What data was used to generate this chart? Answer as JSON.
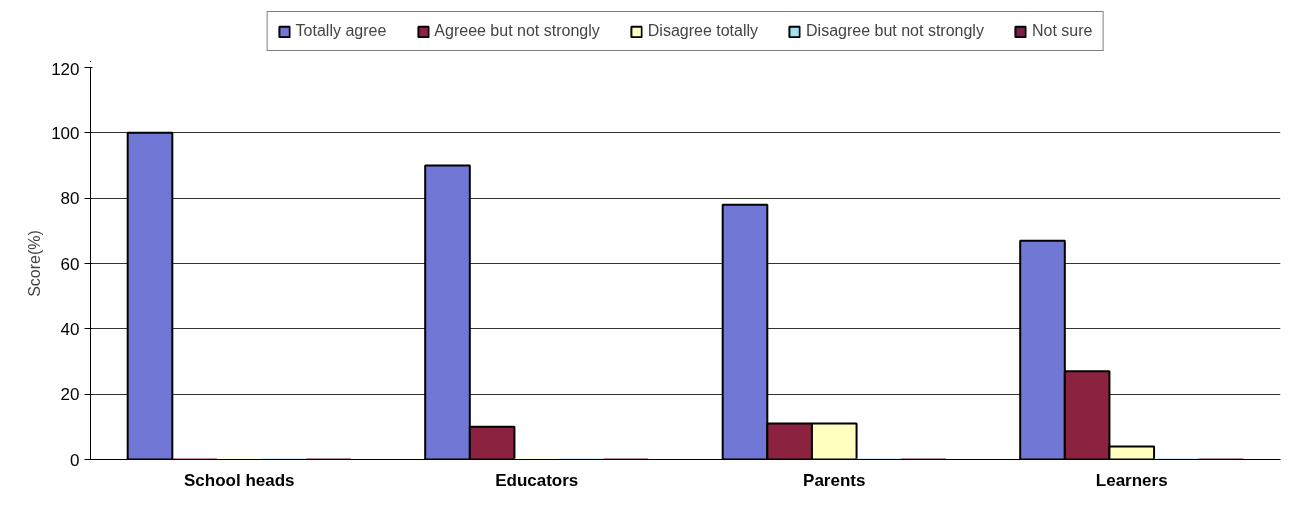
{
  "chart_data": {
    "type": "bar",
    "ylabel": "Score(%)",
    "categories": [
      "School heads",
      "Educators",
      "Parents",
      "Learners"
    ],
    "series": [
      {
        "name": "Totally agree",
        "color": "#7077d4",
        "values": [
          100,
          90,
          78,
          67
        ]
      },
      {
        "name": "Agreee but not strongly",
        "color": "#8b2340",
        "values": [
          0,
          10,
          11,
          27
        ]
      },
      {
        "name": "Disagree totally",
        "color": "#ffffc0",
        "values": [
          0,
          0,
          11,
          4
        ]
      },
      {
        "name": "Disagree but not strongly",
        "color": "#a0e0f0",
        "values": [
          0,
          0,
          0,
          0
        ]
      },
      {
        "name": "Not sure",
        "color": "#7a1f4a",
        "values": [
          0,
          0,
          0,
          0
        ]
      }
    ],
    "ylim": [
      0,
      120
    ],
    "yticks": [
      0,
      20,
      40,
      60,
      80,
      100,
      120
    ],
    "grid": "y",
    "legend": "top"
  }
}
